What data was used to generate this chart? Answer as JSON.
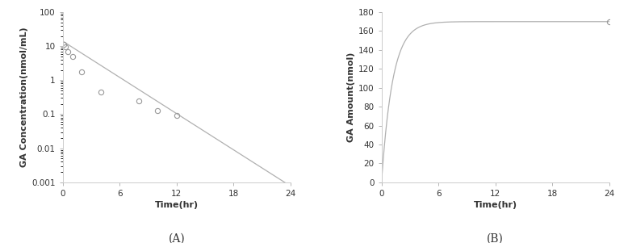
{
  "A": {
    "ylabel": "GA Concentration(nmol/mL)",
    "xlabel": "Time(hr)",
    "label": "(A)",
    "xlim": [
      0,
      24
    ],
    "ylim_log": [
      0.001,
      100
    ],
    "yticks": [
      0.001,
      0.01,
      0.1,
      1,
      10,
      100
    ],
    "xticks": [
      0,
      6,
      12,
      18,
      24
    ],
    "scatter_x": [
      0.083,
      0.25,
      0.5,
      1.0,
      2.0,
      4.0,
      8.0,
      10.0,
      12.0
    ],
    "scatter_y": [
      11.0,
      9.5,
      7.0,
      5.0,
      1.8,
      0.45,
      0.25,
      0.13,
      0.09
    ],
    "line_x": [
      0,
      23.5
    ],
    "line_y": [
      14.0,
      0.00095
    ],
    "line_color": "#b0b0b0",
    "scatter_facecolor": "none",
    "scatter_edgecolor": "#999999"
  },
  "B": {
    "ylabel": "GA Amount(nmol)",
    "xlabel": "Time(hr)",
    "label": "(B)",
    "xlim": [
      0,
      24
    ],
    "ylim": [
      0,
      180
    ],
    "yticks": [
      0,
      20,
      40,
      60,
      80,
      100,
      120,
      140,
      160,
      180
    ],
    "xticks": [
      0,
      6,
      12,
      18,
      24
    ],
    "scatter_x": [
      24
    ],
    "scatter_y": [
      170
    ],
    "line_color": "#b0b0b0",
    "scatter_facecolor": "none",
    "scatter_edgecolor": "#999999",
    "curve_k": 0.85,
    "curve_plateau": 170.0
  },
  "background_color": "#ffffff",
  "label_fontsize": 8,
  "tick_fontsize": 7.5,
  "panel_label_fontsize": 10
}
